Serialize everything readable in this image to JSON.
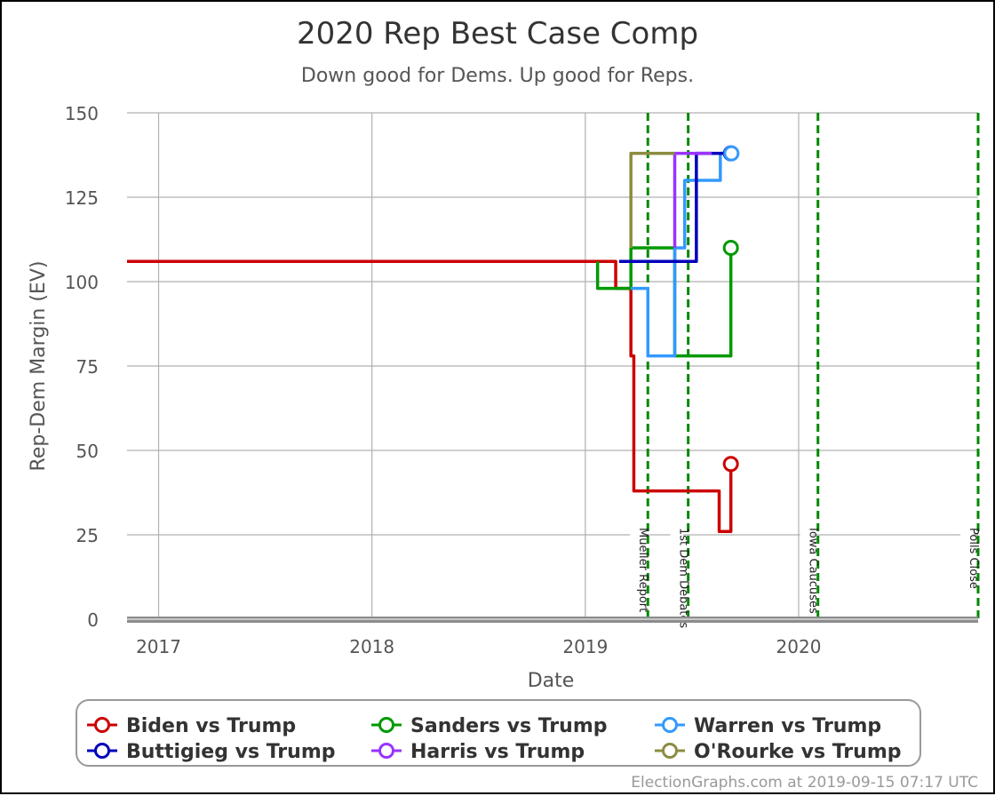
{
  "chart_data": {
    "type": "line",
    "title": "2020 Rep Best Case Comp",
    "subtitle": "Down good for Dems. Up good for Reps.",
    "xlabel": "Date",
    "ylabel": "Rep-Dem Margin (EV)",
    "xlim": [
      "2016-11-08",
      "2020-11-03"
    ],
    "ylim": [
      0,
      150
    ],
    "x_ticks": [
      {
        "label": "2017",
        "date": "2017-01-01"
      },
      {
        "label": "2018",
        "date": "2018-01-01"
      },
      {
        "label": "2019",
        "date": "2019-01-01"
      },
      {
        "label": "2020",
        "date": "2020-01-01"
      }
    ],
    "y_ticks": [
      0,
      25,
      50,
      75,
      100,
      125,
      150
    ],
    "grid": true,
    "step": true,
    "events": [
      {
        "label": "Mueller Report",
        "date": "2019-04-18"
      },
      {
        "label": "1st Dem Debates",
        "date": "2019-06-26"
      },
      {
        "label": "Iowa Caucuses",
        "date": "2020-02-03"
      },
      {
        "label": "Polls Close",
        "date": "2020-11-03"
      }
    ],
    "series": [
      {
        "name": "Biden vs Trump",
        "color": "#cc0000",
        "points": [
          [
            "2016-11-08",
            106
          ],
          [
            "2019-02-22",
            106
          ],
          [
            "2019-02-22",
            98
          ],
          [
            "2019-03-20",
            98
          ],
          [
            "2019-03-20",
            78
          ],
          [
            "2019-03-25",
            78
          ],
          [
            "2019-03-25",
            38
          ],
          [
            "2019-08-18",
            38
          ],
          [
            "2019-08-18",
            26
          ],
          [
            "2019-09-07",
            26
          ],
          [
            "2019-09-07",
            46
          ]
        ]
      },
      {
        "name": "Sanders vs Trump",
        "color": "#009900",
        "points": [
          [
            "2019-01-22",
            106
          ],
          [
            "2019-01-22",
            98
          ],
          [
            "2019-03-20",
            98
          ],
          [
            "2019-03-20",
            110
          ],
          [
            "2019-06-03",
            110
          ],
          [
            "2019-06-03",
            78
          ],
          [
            "2019-09-07",
            78
          ],
          [
            "2019-09-07",
            110
          ]
        ]
      },
      {
        "name": "Warren vs Trump",
        "color": "#3399ff",
        "points": [
          [
            "2019-03-20",
            98
          ],
          [
            "2019-04-18",
            98
          ],
          [
            "2019-04-18",
            78
          ],
          [
            "2019-06-03",
            78
          ],
          [
            "2019-06-03",
            110
          ],
          [
            "2019-06-20",
            110
          ],
          [
            "2019-06-20",
            130
          ],
          [
            "2019-08-20",
            130
          ],
          [
            "2019-08-20",
            138
          ],
          [
            "2019-09-08",
            138
          ]
        ]
      },
      {
        "name": "Buttigieg vs Trump",
        "color": "#0000bb",
        "points": [
          [
            "2019-02-28",
            106
          ],
          [
            "2019-07-10",
            106
          ],
          [
            "2019-07-10",
            138
          ],
          [
            "2019-09-07",
            138
          ]
        ]
      },
      {
        "name": "Harris vs Trump",
        "color": "#9933ff",
        "points": [
          [
            "2019-06-03",
            110
          ],
          [
            "2019-06-03",
            138
          ],
          [
            "2019-08-05",
            138
          ]
        ]
      },
      {
        "name": "O'Rourke vs Trump",
        "color": "#8c8c40",
        "points": [
          [
            "2019-03-20",
            110
          ],
          [
            "2019-03-20",
            138
          ],
          [
            "2019-06-03",
            138
          ]
        ]
      }
    ],
    "end_markers": [
      {
        "series": "Biden vs Trump",
        "date": "2019-09-07",
        "value": 46
      },
      {
        "series": "Sanders vs Trump",
        "date": "2019-09-07",
        "value": 110
      },
      {
        "series": "Buttigieg vs Trump",
        "date": "2019-09-07",
        "value": 138
      },
      {
        "series": "Warren vs Trump",
        "date": "2019-09-08",
        "value": 138
      }
    ],
    "legend": {
      "placement": "bottom",
      "items": [
        {
          "label": "Biden vs Trump",
          "color": "#cc0000"
        },
        {
          "label": "Sanders vs Trump",
          "color": "#009900"
        },
        {
          "label": "Warren vs Trump",
          "color": "#3399ff"
        },
        {
          "label": "Buttigieg vs Trump",
          "color": "#0000bb"
        },
        {
          "label": "Harris vs Trump",
          "color": "#9933ff"
        },
        {
          "label": "O'Rourke vs Trump",
          "color": "#8c8c40"
        }
      ]
    },
    "credit": "ElectionGraphs.com at 2019-09-15 07:17 UTC"
  }
}
